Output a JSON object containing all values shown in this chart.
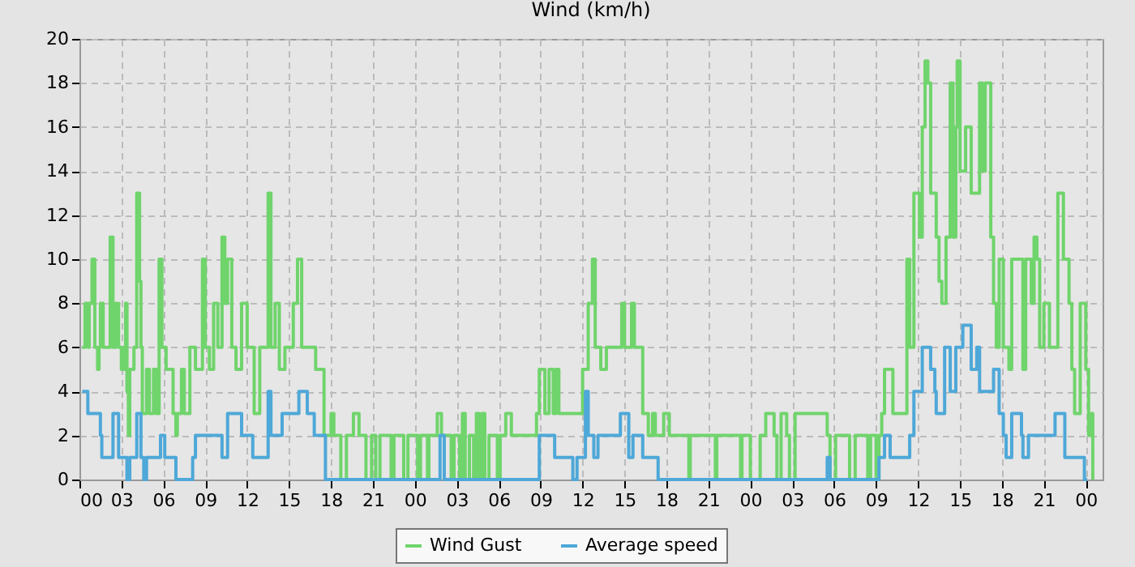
{
  "chart_data": {
    "type": "step",
    "title": "Wind (km/h)",
    "xlim": [
      0,
      73.2
    ],
    "ylim": [
      0,
      20
    ],
    "xticks": [
      {
        "value": 0,
        "label": "00"
      },
      {
        "value": 3,
        "label": "03"
      },
      {
        "value": 6,
        "label": "06"
      },
      {
        "value": 9,
        "label": "09"
      },
      {
        "value": 12,
        "label": "12"
      },
      {
        "value": 15,
        "label": "15"
      },
      {
        "value": 18,
        "label": "18"
      },
      {
        "value": 21,
        "label": "21"
      },
      {
        "value": 24,
        "label": "00"
      },
      {
        "value": 27,
        "label": "03"
      },
      {
        "value": 30,
        "label": "06"
      },
      {
        "value": 33,
        "label": "09"
      },
      {
        "value": 36,
        "label": "12"
      },
      {
        "value": 39,
        "label": "15"
      },
      {
        "value": 42,
        "label": "18"
      },
      {
        "value": 45,
        "label": "21"
      },
      {
        "value": 48,
        "label": "00"
      },
      {
        "value": 51,
        "label": "03"
      },
      {
        "value": 54,
        "label": "06"
      },
      {
        "value": 57,
        "label": "09"
      },
      {
        "value": 60,
        "label": "12"
      },
      {
        "value": 63,
        "label": "15"
      },
      {
        "value": 66,
        "label": "18"
      },
      {
        "value": 69,
        "label": "21"
      },
      {
        "value": 72,
        "label": "00"
      }
    ],
    "yticks": [
      0,
      2,
      4,
      6,
      8,
      10,
      12,
      14,
      16,
      18,
      20
    ],
    "grid": true,
    "legend": "bottom",
    "line_style": "solid",
    "series": [
      {
        "name": "Wind Gust",
        "color": "#70d46c",
        "x": [
          0.2,
          0.4,
          0.6,
          0.7,
          0.9,
          1.1,
          1.3,
          1.4,
          1.5,
          1.7,
          2.2,
          2.4,
          2.6,
          2.8,
          3.0,
          3.2,
          3.3,
          3.4,
          3.5,
          3.6,
          3.9,
          4.1,
          4.3,
          4.4,
          4.5,
          4.8,
          5.0,
          5.3,
          5.5,
          5.7,
          5.9,
          6.2,
          6.7,
          6.9,
          7.0,
          7.3,
          7.5,
          7.9,
          8.3,
          8.8,
          9.0,
          9.3,
          9.6,
          9.9,
          10.2,
          10.4,
          10.6,
          10.9,
          11.2,
          11.6,
          12.0,
          12.5,
          12.9,
          13.5,
          13.7,
          14.0,
          14.3,
          14.7,
          15.3,
          15.6,
          15.9,
          16.9,
          17.5,
          18.0,
          18.2,
          18.7,
          19.1,
          19.6,
          20.0,
          20.5,
          20.9,
          21.2,
          21.5,
          22.3,
          22.5,
          23.2,
          23.5,
          24.2,
          24.4,
          24.9,
          25.0,
          25.6,
          25.9,
          26.6,
          26.8,
          27.2,
          27.4,
          27.6,
          27.9,
          28.2,
          28.4,
          28.6,
          28.8,
          29.0,
          29.3,
          29.9,
          30.1,
          30.5,
          30.9,
          32.7,
          32.9,
          33.3,
          33.6,
          33.9,
          34.1,
          34.3,
          36.0,
          36.4,
          36.7,
          36.9,
          37.3,
          37.7,
          38.8,
          39.0,
          39.5,
          39.7,
          40.3,
          40.7,
          41.0,
          41.2,
          41.8,
          42.2,
          43.6,
          43.7,
          45.5,
          45.6,
          47.3,
          47.4,
          48.0,
          48.7,
          49.1,
          49.7,
          49.9,
          50.2,
          50.6,
          50.8,
          51.2,
          53.5,
          53.7,
          54.1,
          55.1,
          55.5,
          56.4,
          56.6,
          57.0,
          57.2,
          57.4,
          57.6,
          58.2,
          59.2,
          59.4,
          59.7,
          60.1,
          60.3,
          60.5,
          60.7,
          60.9,
          61.3,
          61.5,
          61.7,
          62.0,
          62.3,
          62.5,
          62.7,
          62.8,
          63.0,
          63.4,
          63.8,
          64.4,
          64.6,
          64.8,
          65.2,
          65.4,
          65.6,
          65.8,
          66.1,
          66.5,
          66.7,
          67.5,
          67.7,
          68.1,
          68.3,
          68.5,
          68.7,
          69.0,
          69.4,
          70.0,
          70.4,
          70.8,
          71.0,
          71.2,
          71.6,
          72.0,
          72.2,
          72.4,
          72.5
        ],
        "values": [
          6,
          8,
          6,
          8,
          10,
          6,
          5,
          6,
          8,
          6,
          11,
          6,
          8,
          6,
          5,
          6,
          8,
          4,
          2,
          5,
          6,
          13,
          9,
          6,
          3,
          5,
          3,
          5,
          3,
          10,
          6,
          5,
          3,
          2,
          3,
          5,
          3,
          6,
          5,
          10,
          6,
          5,
          8,
          6,
          11,
          8,
          10,
          6,
          5,
          8,
          6,
          3,
          6,
          13,
          6,
          8,
          5,
          6,
          8,
          10,
          6,
          5,
          2,
          3,
          2,
          0,
          2,
          3,
          2,
          0,
          2,
          0,
          2,
          0,
          2,
          0,
          2,
          0,
          2,
          0,
          2,
          3,
          2,
          0,
          2,
          0,
          3,
          0,
          2,
          0,
          3,
          0,
          3,
          0,
          2,
          0,
          2,
          3,
          2,
          3,
          5,
          3,
          5,
          3,
          5,
          3,
          5,
          8,
          10,
          6,
          5,
          6,
          8,
          6,
          8,
          6,
          3,
          2,
          3,
          2,
          3,
          2,
          0,
          2,
          0,
          2,
          0,
          2,
          0,
          2,
          3,
          2,
          0,
          3,
          2,
          0,
          3,
          2,
          0,
          2,
          0,
          2,
          0,
          2,
          0,
          2,
          3,
          5,
          3,
          10,
          6,
          13,
          11,
          16,
          19,
          18,
          13,
          11,
          9,
          8,
          11,
          18,
          11,
          16,
          19,
          14,
          16,
          13,
          18,
          14,
          18,
          11,
          8,
          6,
          10,
          6,
          5,
          10,
          5,
          10,
          8,
          11,
          10,
          6,
          8,
          6,
          13,
          10,
          8,
          5,
          3,
          8,
          5,
          2,
          3,
          0
        ]
      },
      {
        "name": "Average speed",
        "color": "#4ea8d8",
        "x": [
          0.2,
          0.6,
          1.5,
          1.6,
          2.4,
          2.8,
          3.4,
          3.6,
          4.1,
          4.4,
          4.6,
          4.8,
          5.8,
          6.1,
          6.9,
          8.1,
          8.3,
          10.2,
          10.6,
          11.6,
          12.4,
          13.5,
          13.7,
          14.5,
          15.7,
          16.3,
          16.8,
          17.6,
          25.8,
          26.1,
          32.9,
          34.0,
          35.3,
          35.6,
          36.2,
          36.4,
          36.8,
          37.1,
          38.7,
          39.3,
          39.6,
          40.3,
          41.4,
          53.5,
          53.7,
          57.2,
          57.6,
          58.0,
          59.2,
          59.4,
          59.7,
          60.3,
          60.9,
          61.2,
          61.3,
          61.9,
          62.3,
          62.7,
          63.2,
          63.8,
          64.2,
          64.4,
          65.4,
          65.8,
          66.1,
          66.3,
          66.7,
          67.4,
          67.5,
          67.9,
          69.1,
          69.8,
          70.5,
          71.9,
          72.1
        ],
        "values": [
          4,
          3,
          2,
          1,
          3,
          1,
          0,
          1,
          3,
          1,
          0,
          1,
          2,
          1,
          0,
          1,
          2,
          1,
          3,
          2,
          1,
          4,
          2,
          3,
          4,
          3,
          2,
          0,
          2,
          0,
          2,
          1,
          0,
          1,
          4,
          2,
          1,
          2,
          3,
          1,
          2,
          1,
          0,
          1,
          0,
          1,
          2,
          1,
          1,
          2,
          4,
          6,
          5,
          4,
          3,
          6,
          4,
          6,
          7,
          5,
          6,
          4,
          5,
          3,
          2,
          1,
          3,
          2,
          1,
          2,
          2,
          3,
          1,
          0,
          0
        ]
      }
    ]
  }
}
